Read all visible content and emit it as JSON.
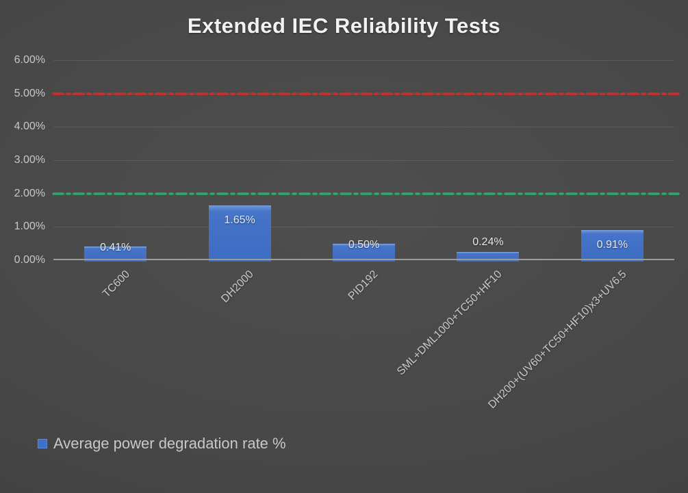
{
  "chart_data": {
    "type": "bar",
    "title": "Extended IEC Reliability Tests",
    "categories": [
      "TC600",
      "DH2000",
      "PID192",
      "SML+DML1000+TC50+HF10",
      "DH200+(UV60+TC50+HF10)x3+UV6.5"
    ],
    "series": [
      {
        "name": "Average power degradation rate %",
        "values": [
          0.41,
          1.65,
          0.5,
          0.24,
          0.91
        ],
        "labels": [
          "0.41%",
          "1.65%",
          "0.50%",
          "0.24%",
          "0.91%"
        ],
        "color": "#3f6fc8"
      }
    ],
    "xlabel": "",
    "ylabel": "",
    "ylim": [
      0,
      6
    ],
    "ytick_step": 1,
    "ytick_labels": [
      "0.00%",
      "1.00%",
      "2.00%",
      "3.00%",
      "4.00%",
      "5.00%",
      "6.00%"
    ],
    "grid": true,
    "legend_position": "bottom-left",
    "reference_lines": [
      {
        "value": 5.0,
        "color": "#d42a2a",
        "style": "long-dash-dot",
        "meaning": "upper-limit"
      },
      {
        "value": 2.0,
        "color": "#27ad68",
        "style": "long-dash-dot",
        "meaning": "target-limit"
      }
    ],
    "colors": {
      "background": "#474747",
      "bar": "#3f6fc8",
      "title_text": "#f2f2f2",
      "axis_text": "#c8c8c8",
      "axis_line": "#9c9c9c",
      "gridline": "rgba(255,255,255,0.10)",
      "red_line": "#d42a2a",
      "green_line": "#27ad68"
    }
  }
}
